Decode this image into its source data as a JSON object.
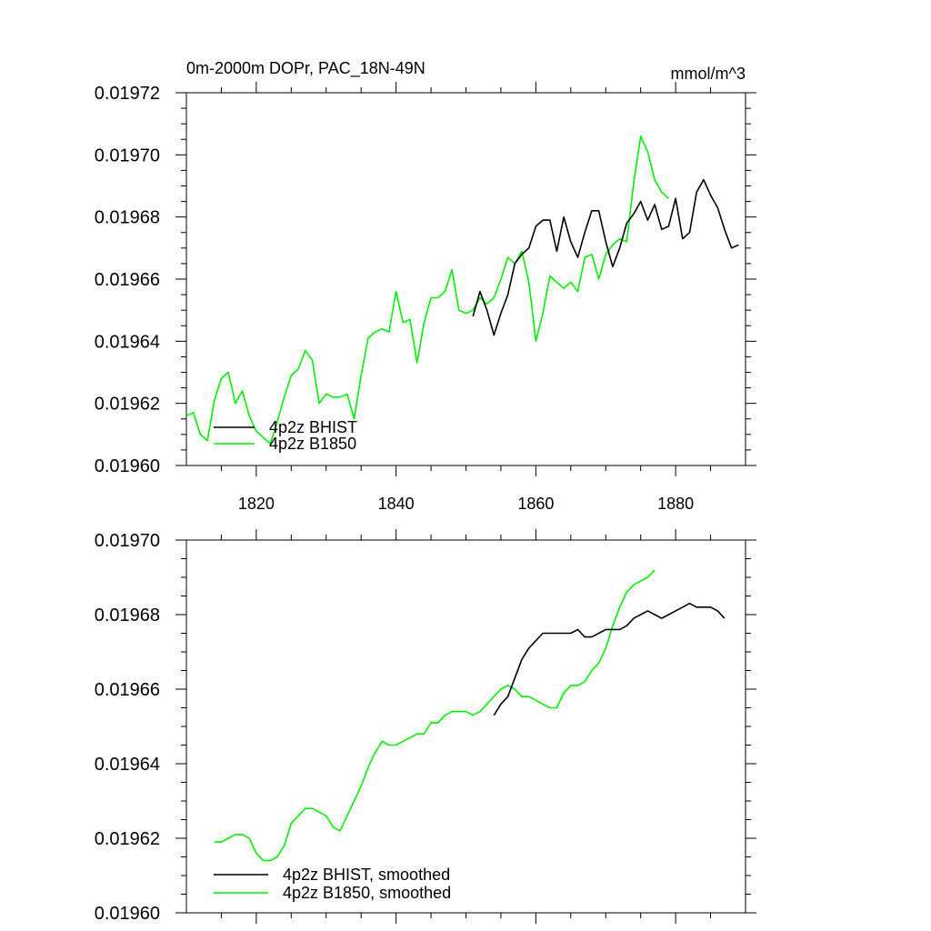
{
  "chart_data": [
    {
      "type": "line",
      "title": "0m-2000m DOPr, PAC_18N-49N",
      "units": "mmol/m^3",
      "xlim": [
        1810,
        1890
      ],
      "ylim": [
        0.0196,
        0.01972
      ],
      "xticks": [
        1820,
        1840,
        1860,
        1880
      ],
      "yticks": [
        "0.01960",
        "0.01962",
        "0.01964",
        "0.01966",
        "0.01968",
        "0.01970",
        "0.01972"
      ],
      "legend_position": "bottom-left",
      "series": [
        {
          "name": "4p2z BHIST",
          "color": "#000000",
          "x": [
            1851,
            1852,
            1853,
            1854,
            1855,
            1856,
            1857,
            1858,
            1859,
            1860,
            1861,
            1862,
            1863,
            1864,
            1865,
            1866,
            1867,
            1868,
            1869,
            1870,
            1871,
            1872,
            1873,
            1874,
            1875,
            1876,
            1877,
            1878,
            1879,
            1880,
            1881,
            1882,
            1883,
            1884,
            1885,
            1886,
            1887,
            1888,
            1889
          ],
          "y": [
            0.019648,
            0.019656,
            0.01965,
            0.019642,
            0.019649,
            0.019655,
            0.019665,
            0.019668,
            0.01967,
            0.019677,
            0.019679,
            0.019679,
            0.019669,
            0.01968,
            0.019672,
            0.019667,
            0.019675,
            0.019682,
            0.019682,
            0.019672,
            0.019664,
            0.01967,
            0.019678,
            0.019681,
            0.019685,
            0.019679,
            0.019684,
            0.019676,
            0.019677,
            0.019686,
            0.019673,
            0.019675,
            0.019688,
            0.019692,
            0.019687,
            0.019683,
            0.019676,
            0.01967,
            0.019671
          ]
        },
        {
          "name": "4p2z B1850",
          "color": "#00ee00",
          "x": [
            1810,
            1811,
            1812,
            1813,
            1814,
            1815,
            1816,
            1817,
            1818,
            1819,
            1820,
            1821,
            1822,
            1823,
            1824,
            1825,
            1826,
            1827,
            1828,
            1829,
            1830,
            1831,
            1832,
            1833,
            1834,
            1835,
            1836,
            1837,
            1838,
            1839,
            1840,
            1841,
            1842,
            1843,
            1844,
            1845,
            1846,
            1847,
            1848,
            1849,
            1850,
            1851,
            1852,
            1853,
            1854,
            1855,
            1856,
            1857,
            1858,
            1859,
            1860,
            1861,
            1862,
            1863,
            1864,
            1865,
            1866,
            1867,
            1868,
            1869,
            1870,
            1871,
            1872,
            1873,
            1874,
            1875,
            1876,
            1877,
            1878,
            1879
          ],
          "y": [
            0.019616,
            0.019617,
            0.01961,
            0.019608,
            0.019621,
            0.019628,
            0.01963,
            0.01962,
            0.019624,
            0.019616,
            0.019611,
            0.019609,
            0.019607,
            0.019614,
            0.019622,
            0.019629,
            0.019631,
            0.019637,
            0.019634,
            0.01962,
            0.019623,
            0.019622,
            0.019622,
            0.019623,
            0.019615,
            0.019629,
            0.019641,
            0.019643,
            0.019644,
            0.019643,
            0.019656,
            0.019646,
            0.019647,
            0.019633,
            0.019646,
            0.019654,
            0.019654,
            0.019656,
            0.019663,
            0.01965,
            0.019649,
            0.01965,
            0.019654,
            0.019652,
            0.019654,
            0.01966,
            0.019667,
            0.019665,
            0.019669,
            0.019659,
            0.01964,
            0.019649,
            0.019661,
            0.019659,
            0.019657,
            0.019659,
            0.019656,
            0.019667,
            0.019668,
            0.01966,
            0.019668,
            0.019671,
            0.019673,
            0.019672,
            0.019691,
            0.019706,
            0.019701,
            0.019692,
            0.019688,
            0.019686
          ]
        }
      ]
    },
    {
      "type": "line",
      "title": "",
      "xlim": [
        1810,
        1890
      ],
      "ylim": [
        0.0196,
        0.0197
      ],
      "yticks": [
        "0.01960",
        "0.01962",
        "0.01964",
        "0.01966",
        "0.01968",
        "0.01970"
      ],
      "legend_position": "bottom-left",
      "series": [
        {
          "name": "4p2z BHIST, smoothed",
          "color": "#000000",
          "x": [
            1854,
            1855,
            1856,
            1857,
            1858,
            1859,
            1860,
            1861,
            1862,
            1863,
            1864,
            1865,
            1866,
            1867,
            1868,
            1869,
            1870,
            1871,
            1872,
            1873,
            1874,
            1875,
            1876,
            1877,
            1878,
            1879,
            1880,
            1881,
            1882,
            1883,
            1884,
            1885,
            1886,
            1887
          ],
          "y": [
            0.019653,
            0.019656,
            0.019658,
            0.019663,
            0.019668,
            0.019671,
            0.019673,
            0.019675,
            0.019675,
            0.019675,
            0.019675,
            0.019675,
            0.019676,
            0.019674,
            0.019674,
            0.019675,
            0.019676,
            0.019676,
            0.019676,
            0.019677,
            0.019679,
            0.01968,
            0.019681,
            0.01968,
            0.019679,
            0.01968,
            0.019681,
            0.019682,
            0.019683,
            0.019682,
            0.019682,
            0.019682,
            0.019681,
            0.019679
          ]
        },
        {
          "name": "4p2z B1850, smoothed",
          "color": "#00ee00",
          "x": [
            1814,
            1815,
            1816,
            1817,
            1818,
            1819,
            1820,
            1821,
            1822,
            1823,
            1824,
            1825,
            1826,
            1827,
            1828,
            1829,
            1830,
            1831,
            1832,
            1833,
            1834,
            1835,
            1836,
            1837,
            1838,
            1839,
            1840,
            1841,
            1842,
            1843,
            1844,
            1845,
            1846,
            1847,
            1848,
            1849,
            1850,
            1851,
            1852,
            1853,
            1854,
            1855,
            1856,
            1857,
            1858,
            1859,
            1860,
            1861,
            1862,
            1863,
            1864,
            1865,
            1866,
            1867,
            1868,
            1869,
            1870,
            1871,
            1872,
            1873,
            1874,
            1875,
            1876,
            1877
          ],
          "y": [
            0.019619,
            0.019619,
            0.01962,
            0.019621,
            0.019621,
            0.01962,
            0.019616,
            0.019614,
            0.019614,
            0.019615,
            0.019618,
            0.019624,
            0.019626,
            0.019628,
            0.019628,
            0.019627,
            0.019626,
            0.019623,
            0.019622,
            0.019626,
            0.01963,
            0.019634,
            0.019639,
            0.019643,
            0.019646,
            0.019645,
            0.019645,
            0.019646,
            0.019647,
            0.019648,
            0.019648,
            0.019651,
            0.019651,
            0.019653,
            0.019654,
            0.019654,
            0.019654,
            0.019653,
            0.019654,
            0.019656,
            0.019658,
            0.01966,
            0.019661,
            0.01966,
            0.019658,
            0.019658,
            0.019657,
            0.019656,
            0.019655,
            0.019655,
            0.019659,
            0.019661,
            0.019661,
            0.019662,
            0.019665,
            0.019667,
            0.019671,
            0.019677,
            0.019682,
            0.019686,
            0.019688,
            0.019689,
            0.01969,
            0.019692
          ]
        }
      ]
    }
  ]
}
